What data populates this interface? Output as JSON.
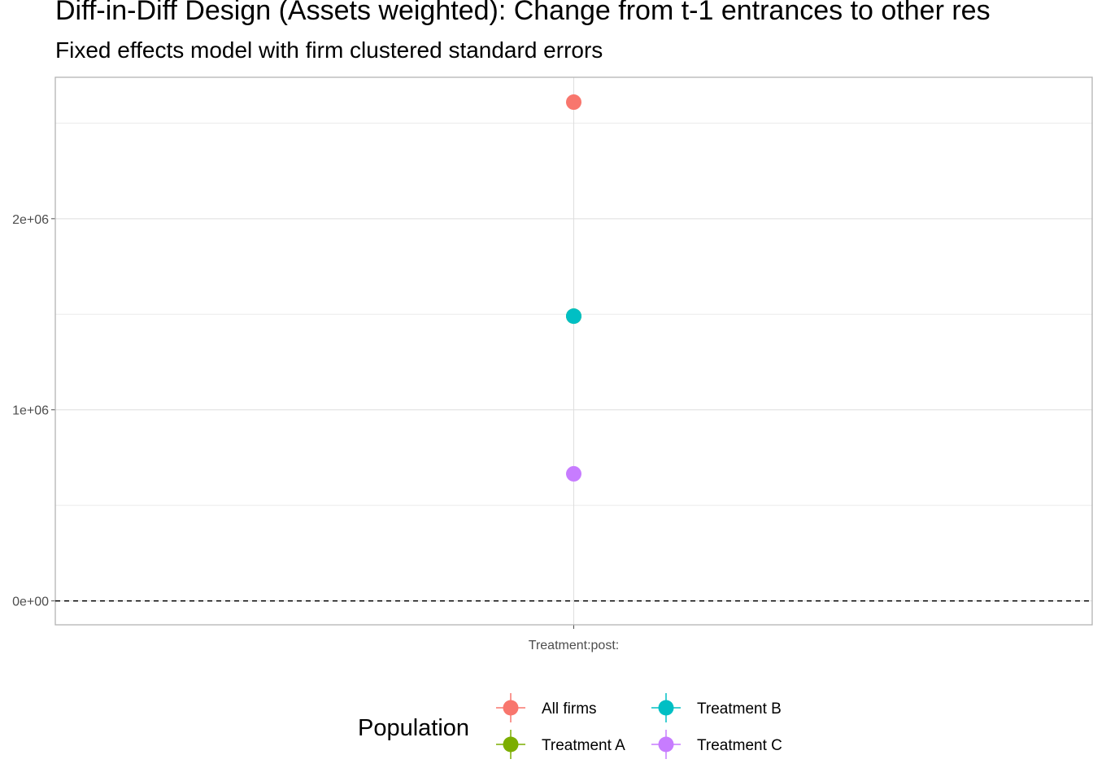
{
  "chart_data": {
    "type": "scatter",
    "title": "Diff-in-Diff Design (Assets weighted): Change from t-1 entrances to other res",
    "subtitle": "Fixed effects model with firm clustered standard errors",
    "categories": [
      "Treatment:post:"
    ],
    "y_ticks": [
      {
        "value": 0,
        "label": "0e+00"
      },
      {
        "value": 1000000,
        "label": "1e+06"
      },
      {
        "value": 2000000,
        "label": "2e+06"
      }
    ],
    "ylim": [
      -125000,
      2740000
    ],
    "minor_gridlines_y": [
      500000,
      1500000,
      2500000
    ],
    "reference_line_y": 0,
    "grid": true,
    "legend_title": "Population",
    "legend_position": "bottom",
    "series": [
      {
        "name": "All firms",
        "color": "#F8766D",
        "values": [
          2610000
        ]
      },
      {
        "name": "Treatment A",
        "color": "#7CAE00",
        "values": [
          1490000
        ]
      },
      {
        "name": "Treatment B",
        "color": "#00BFC4",
        "values": [
          1490000
        ]
      },
      {
        "name": "Treatment C",
        "color": "#C77CFF",
        "values": [
          665000
        ]
      }
    ]
  }
}
